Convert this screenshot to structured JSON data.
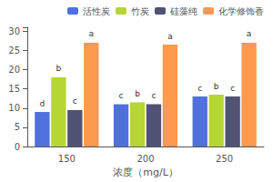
{
  "chart_data": {
    "type": "bar",
    "xlabel": "浓度（mg/L）",
    "categories": [
      "150",
      "200",
      "250"
    ],
    "series": [
      {
        "name": "活性炭",
        "values": [
          9,
          11,
          13
        ],
        "value_labels": [
          "d",
          "c",
          "c"
        ]
      },
      {
        "name": "竹炭",
        "values": [
          18,
          11.5,
          13.5
        ],
        "value_labels": [
          "b",
          "b",
          "b"
        ]
      },
      {
        "name": "硅藻纯",
        "values": [
          9.5,
          11,
          13
        ],
        "value_labels": [
          "c",
          "c",
          "c"
        ]
      },
      {
        "name": "化学修饰香",
        "values": [
          27,
          26.5,
          27
        ],
        "value_labels": [
          "a",
          "a",
          "a"
        ]
      }
    ],
    "ylim": [
      0,
      31
    ],
    "yticks": [
      0,
      5,
      10,
      15,
      20,
      25,
      30
    ],
    "grid": false,
    "legend": "upper right",
    "data_labels": true
  }
}
